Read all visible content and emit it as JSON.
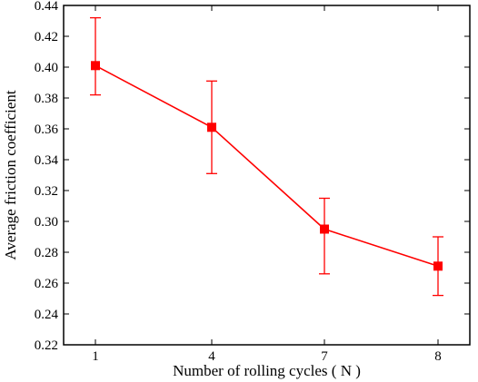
{
  "chart_data": {
    "type": "line",
    "title": "",
    "xlabel": "Number of rolling cycles ( N )",
    "ylabel": "Average friction coefficient",
    "categories": [
      "1",
      "4",
      "7",
      "8"
    ],
    "ylim": [
      0.22,
      0.44
    ],
    "yticks": [
      "0.22",
      "0.24",
      "0.26",
      "0.28",
      "0.30",
      "0.32",
      "0.34",
      "0.36",
      "0.38",
      "0.40",
      "0.42",
      "0.44"
    ],
    "series": [
      {
        "values": [
          0.401,
          0.361,
          0.295,
          0.271
        ],
        "error_low": [
          0.382,
          0.331,
          0.266,
          0.252
        ],
        "error_high": [
          0.432,
          0.391,
          0.315,
          0.29
        ],
        "color": "#ff0000"
      }
    ],
    "grid": false,
    "legend": "none"
  }
}
